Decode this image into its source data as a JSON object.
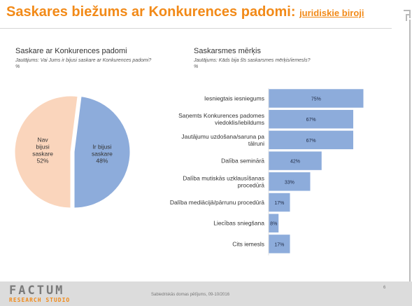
{
  "header": {
    "title_main": "Saskares biežums ar Konkurences padomi: ",
    "title_sub": "juridiskie biroji"
  },
  "left": {
    "title": "Saskare ar Konkurences padomi",
    "question": "Jautājums: Vai Jums ir bijusi saskare ar Konkurences padomi?",
    "unit": "%"
  },
  "right": {
    "title": "Saskarsmes mērķis",
    "question": "Jautājums: Kāds bija šīs saskarsmes mērķis/iemesls?",
    "unit": "%"
  },
  "colors": {
    "accent": "#f28a18",
    "peach": "#fad5bc",
    "blue": "#8dacdb"
  },
  "chart_data": [
    {
      "type": "pie",
      "slices": [
        {
          "label_lines": [
            "Nav",
            "bijusi",
            "saskare"
          ],
          "value": 52,
          "value_label": "52%",
          "color": "#fad5bc"
        },
        {
          "label_lines": [
            "Ir bijusi",
            "saskare"
          ],
          "value": 48,
          "value_label": "48%",
          "color": "#8dacdb"
        }
      ]
    },
    {
      "type": "bar",
      "orientation": "horizontal",
      "xlim": [
        0,
        100
      ],
      "categories": [
        [
          "Iesniegtais iesniegums"
        ],
        [
          "Saņemts Konkurences padomes",
          "viedoklis/iebildums"
        ],
        [
          "Jautājumu uzdošana/saruna pa",
          "tālruni"
        ],
        [
          "Dalība seminārā"
        ],
        [
          "Dalība mutiskās uzklausīšanas",
          "procedūrā"
        ],
        [
          "Dalība mediācijā/pārrunu procedūrā"
        ],
        [
          "Liecības sniegšana"
        ],
        [
          "Cits iemesls"
        ]
      ],
      "values": [
        75,
        67,
        67,
        42,
        33,
        17,
        8,
        17
      ],
      "value_labels": [
        "75%",
        "67%",
        "67%",
        "42%",
        "33%",
        "17%",
        "8%",
        "17%"
      ]
    }
  ],
  "footer": {
    "brand": "FACTUM",
    "brand_sub": "RESEARCH STUDIO",
    "note": "Sabiedriskās domas pētījums, 09-10/2016",
    "page": "6"
  }
}
